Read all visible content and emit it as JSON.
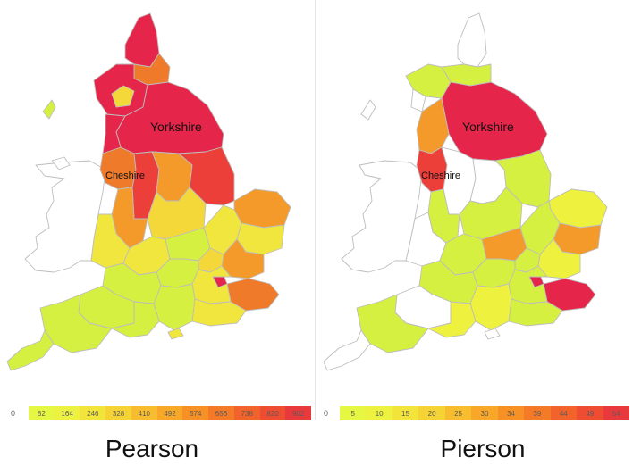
{
  "maps": [
    {
      "caption": "Pearson",
      "labels": {
        "big": "Yorkshire",
        "small": "Cheshire"
      },
      "legend": {
        "zero": "0",
        "ticks": [
          "82",
          "164",
          "246",
          "328",
          "410",
          "492",
          "574",
          "656",
          "738",
          "820",
          "902"
        ],
        "colors": [
          "#e6f743",
          "#ecf23f",
          "#f2e43a",
          "#f6d334",
          "#f8bd2e",
          "#f8a729",
          "#f79025",
          "#f57a27",
          "#f2632c",
          "#ee4d32",
          "#e83a3c"
        ]
      },
      "colors": {
        "low": "#d5f040",
        "mid": "#f0e63e",
        "yellow": "#f4d83a",
        "orange": "#f39a2b",
        "dark_orange": "#ef7a2a",
        "red": "#ec3f3a",
        "crimson": "#e5264a"
      }
    },
    {
      "caption": "Pierson",
      "labels": {
        "big": "Yorkshire",
        "small": "Cheshire"
      },
      "legend": {
        "zero": "0",
        "ticks": [
          "5",
          "10",
          "15",
          "20",
          "25",
          "30",
          "34",
          "39",
          "44",
          "49",
          "54"
        ],
        "colors": [
          "#e6f743",
          "#ecf23f",
          "#f2e43a",
          "#f6d334",
          "#f8bd2e",
          "#f8a729",
          "#f79025",
          "#f57a27",
          "#f2632c",
          "#ee4d32",
          "#e83a3c"
        ]
      },
      "colors": {
        "low": "#d5f040",
        "mid": "#eef23e",
        "orange": "#f39a2b",
        "red": "#ec3f3a",
        "crimson": "#e5264a",
        "white": "#ffffff"
      }
    }
  ]
}
